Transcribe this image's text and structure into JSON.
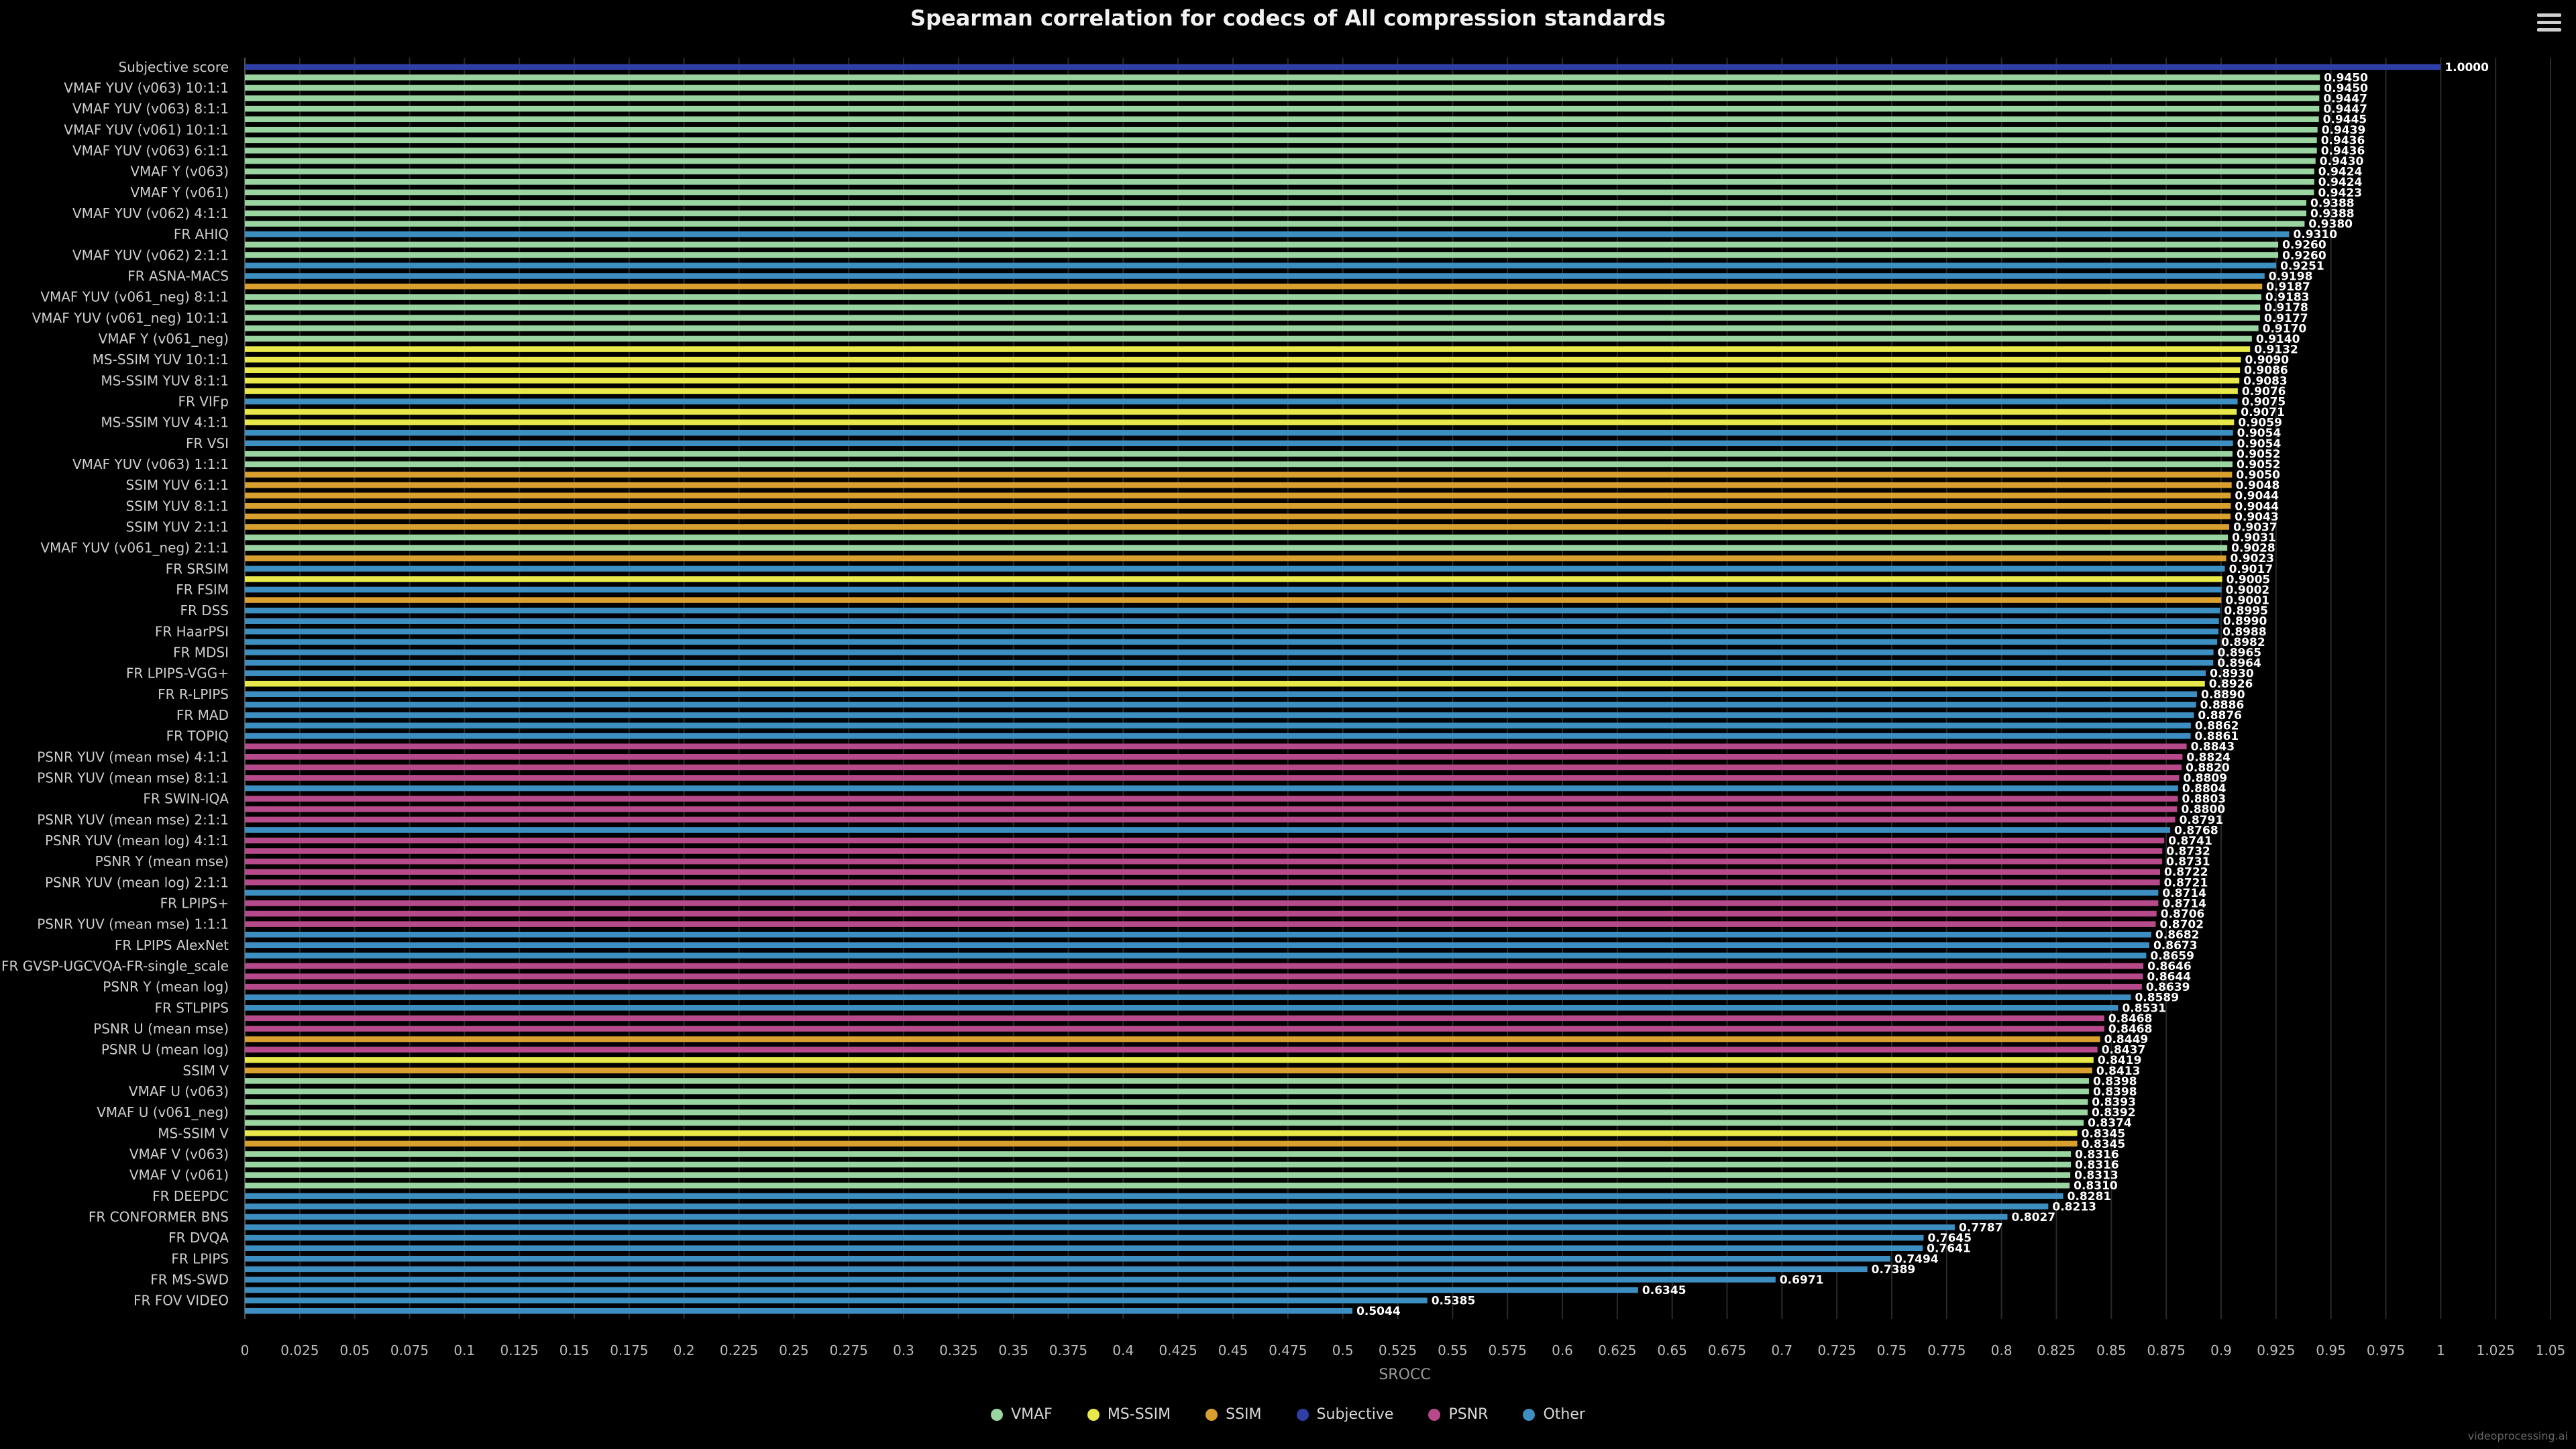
{
  "chart_title": "Spearman correlation for codecs of All compression standards",
  "credits": "videoprocessing.ai",
  "chart_data": {
    "type": "bar",
    "orientation": "horizontal",
    "title": "Spearman correlation for codecs of All compression standards",
    "xlabel": "SROCC",
    "ylabel": "",
    "xlim": [
      0,
      1.05
    ],
    "x_ticks": [
      "0",
      "0.025",
      "0.05",
      "0.075",
      "0.1",
      "0.125",
      "0.15",
      "0.175",
      "0.2",
      "0.225",
      "0.25",
      "0.275",
      "0.3",
      "0.325",
      "0.35",
      "0.375",
      "0.4",
      "0.425",
      "0.45",
      "0.475",
      "0.5",
      "0.525",
      "0.55",
      "0.575",
      "0.6",
      "0.625",
      "0.65",
      "0.675",
      "0.7",
      "0.725",
      "0.75",
      "0.775",
      "0.8",
      "0.825",
      "0.85",
      "0.875",
      "0.9",
      "0.925",
      "0.95",
      "0.975",
      "1",
      "1.025",
      "1.05"
    ],
    "grid": "vertical",
    "legend_placement": "bottom-center",
    "legend": [
      {
        "name": "VMAF",
        "color": "#9ad4a0"
      },
      {
        "name": "MS-SSIM",
        "color": "#e8e84a"
      },
      {
        "name": "SSIM",
        "color": "#d9a030"
      },
      {
        "name": "Subjective",
        "color": "#2f3fa8"
      },
      {
        "name": "PSNR",
        "color": "#b64a8a"
      },
      {
        "name": "Other",
        "color": "#3d8fc2"
      }
    ],
    "y_tick_labels": [
      "Subjective score",
      "VMAF YUV (v063) 10:1:1",
      "VMAF YUV (v063) 8:1:1",
      "VMAF YUV (v061) 10:1:1",
      "VMAF YUV (v063) 6:1:1",
      "VMAF Y (v063)",
      "VMAF Y (v061)",
      "VMAF YUV (v062) 4:1:1",
      "FR AHIQ",
      "VMAF YUV (v062) 2:1:1",
      "FR ASNA-MACS",
      "VMAF YUV (v061_neg) 8:1:1",
      "VMAF YUV (v061_neg) 10:1:1",
      "VMAF Y (v061_neg)",
      "MS-SSIM YUV 10:1:1",
      "MS-SSIM YUV 8:1:1",
      "FR VIFp",
      "MS-SSIM YUV 4:1:1",
      "FR VSI",
      "VMAF YUV (v063) 1:1:1",
      "SSIM YUV 6:1:1",
      "SSIM YUV 8:1:1",
      "SSIM YUV 2:1:1",
      "VMAF YUV (v061_neg) 2:1:1",
      "FR SRSIM",
      "FR FSIM",
      "FR DSS",
      "FR HaarPSI",
      "FR MDSI",
      "FR LPIPS-VGG+",
      "FR R-LPIPS",
      "FR MAD",
      "FR TOPIQ",
      "PSNR YUV (mean mse) 4:1:1",
      "PSNR YUV (mean mse) 8:1:1",
      "FR SWIN-IQA",
      "PSNR YUV (mean mse) 2:1:1",
      "PSNR YUV (mean log) 4:1:1",
      "PSNR Y (mean mse)",
      "PSNR YUV (mean log) 2:1:1",
      "FR LPIPS+",
      "PSNR YUV (mean mse) 1:1:1",
      "FR LPIPS AlexNet",
      "FR GVSP-UGCVQA-FR-single_scale",
      "PSNR Y (mean log)",
      "FR STLPIPS",
      "PSNR U (mean mse)",
      "PSNR U (mean log)",
      "SSIM V",
      "VMAF U (v063)",
      "VMAF U (v061_neg)",
      "MS-SSIM V",
      "VMAF V (v063)",
      "VMAF V (v061)",
      "FR DEEPDC",
      "FR CONFORMER BNS",
      "FR DVQA",
      "FR LPIPS",
      "FR MS-SWD",
      "FR FOV VIDEO"
    ],
    "values": [
      "1.0000",
      "0.9450",
      "0.9450",
      "0.9447",
      "0.9447",
      "0.9445",
      "0.9439",
      "0.9436",
      "0.9436",
      "0.9430",
      "0.9424",
      "0.9424",
      "0.9423",
      "0.9388",
      "0.9388",
      "0.9380",
      "0.9310",
      "0.9260",
      "0.9260",
      "0.9251",
      "0.9198",
      "0.9187",
      "0.9183",
      "0.9178",
      "0.9177",
      "0.9170",
      "0.9140",
      "0.9132",
      "0.9090",
      "0.9086",
      "0.9083",
      "0.9076",
      "0.9075",
      "0.9071",
      "0.9059",
      "0.9054",
      "0.9054",
      "0.9052",
      "0.9052",
      "0.9050",
      "0.9048",
      "0.9044",
      "0.9044",
      "0.9043",
      "0.9037",
      "0.9031",
      "0.9028",
      "0.9023",
      "0.9017",
      "0.9005",
      "0.9002",
      "0.9001",
      "0.8995",
      "0.8990",
      "0.8988",
      "0.8982",
      "0.8965",
      "0.8964",
      "0.8930",
      "0.8926",
      "0.8890",
      "0.8886",
      "0.8876",
      "0.8862",
      "0.8861",
      "0.8843",
      "0.8824",
      "0.8820",
      "0.8809",
      "0.8804",
      "0.8803",
      "0.8800",
      "0.8791",
      "0.8768",
      "0.8741",
      "0.8732",
      "0.8731",
      "0.8722",
      "0.8721",
      "0.8714",
      "0.8714",
      "0.8706",
      "0.8702",
      "0.8682",
      "0.8673",
      "0.8659",
      "0.8646",
      "0.8644",
      "0.8639",
      "0.8589",
      "0.8531",
      "0.8468",
      "0.8468",
      "0.8449",
      "0.8437",
      "0.8419",
      "0.8413",
      "0.8398",
      "0.8398",
      "0.8393",
      "0.8392",
      "0.8374",
      "0.8345",
      "0.8345",
      "0.8316",
      "0.8316",
      "0.8313",
      "0.8310",
      "0.8281",
      "0.8213",
      "0.8027",
      "0.7787",
      "0.7645",
      "0.7641",
      "0.7494",
      "0.7389",
      "0.6971",
      "0.6345",
      "0.5385",
      "0.5044"
    ],
    "categories": [
      "Subjective",
      "VMAF",
      "VMAF",
      "VMAF",
      "VMAF",
      "VMAF",
      "VMAF",
      "VMAF",
      "VMAF",
      "VMAF",
      "VMAF",
      "VMAF",
      "VMAF",
      "VMAF",
      "VMAF",
      "VMAF",
      "Other",
      "VMAF",
      "VMAF",
      "Other",
      "Other",
      "SSIM",
      "VMAF",
      "VMAF",
      "VMAF",
      "VMAF",
      "VMAF",
      "MS-SSIM",
      "MS-SSIM",
      "MS-SSIM",
      "MS-SSIM",
      "MS-SSIM",
      "Other",
      "MS-SSIM",
      "MS-SSIM",
      "Other",
      "Other",
      "VMAF",
      "VMAF",
      "SSIM",
      "SSIM",
      "SSIM",
      "SSIM",
      "SSIM",
      "SSIM",
      "VMAF",
      "VMAF",
      "SSIM",
      "Other",
      "MS-SSIM",
      "Other",
      "SSIM",
      "Other",
      "Other",
      "Other",
      "Other",
      "Other",
      "Other",
      "Other",
      "MS-SSIM",
      "Other",
      "Other",
      "Other",
      "Other",
      "Other",
      "PSNR",
      "PSNR",
      "PSNR",
      "PSNR",
      "Other",
      "PSNR",
      "PSNR",
      "PSNR",
      "Other",
      "PSNR",
      "PSNR",
      "PSNR",
      "PSNR",
      "PSNR",
      "Other",
      "PSNR",
      "PSNR",
      "PSNR",
      "Other",
      "Other",
      "Other",
      "PSNR",
      "PSNR",
      "PSNR",
      "Other",
      "Other",
      "PSNR",
      "PSNR",
      "SSIM",
      "PSNR",
      "MS-SSIM",
      "SSIM",
      "VMAF",
      "VMAF",
      "VMAF",
      "VMAF",
      "VMAF",
      "MS-SSIM",
      "SSIM",
      "VMAF",
      "VMAF",
      "VMAF",
      "VMAF",
      "Other",
      "Other",
      "Other",
      "Other",
      "Other",
      "Other",
      "Other",
      "Other",
      "Other",
      "Other",
      "Other",
      "Other"
    ]
  }
}
